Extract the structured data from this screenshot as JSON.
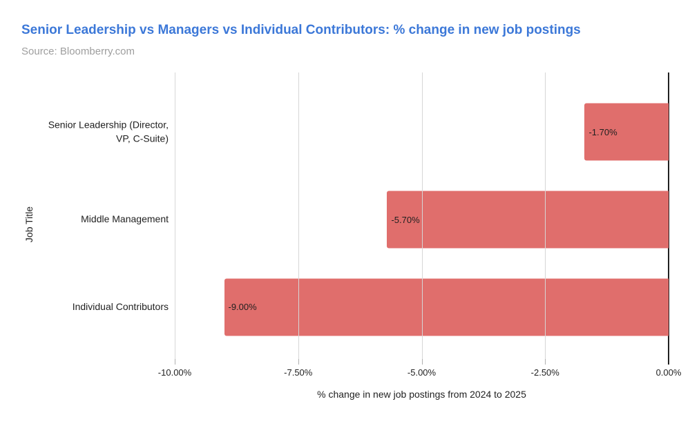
{
  "header": {
    "title": "Senior Leadership vs Managers vs Individual Contributors: % change in new job postings",
    "source": "Source: Bloomberry.com"
  },
  "chart_data": {
    "type": "bar",
    "orientation": "horizontal",
    "title": "Senior Leadership vs Managers vs Individual Contributors: % change in new job postings",
    "subtitle": "Source: Bloomberry.com",
    "categories": [
      "Senior Leadership (Director, VP, C-Suite)",
      "Middle Management",
      "Individual Contributors"
    ],
    "values": [
      -1.7,
      -5.7,
      -9.0
    ],
    "value_labels": [
      "-1.70%",
      "-5.70%",
      "-9.00%"
    ],
    "xlabel": "% change in new job postings from 2024 to 2025",
    "ylabel": "Job Title",
    "xlim": [
      -10,
      0
    ],
    "x_ticks": [
      {
        "value": -10,
        "label": "-10.00%"
      },
      {
        "value": -7.5,
        "label": "-7.50%"
      },
      {
        "value": -5,
        "label": "-5.00%"
      },
      {
        "value": -2.5,
        "label": "-2.50%"
      },
      {
        "value": 0,
        "label": "0.00%"
      }
    ],
    "grid": true,
    "legend": "none"
  },
  "colors": {
    "title": "#3c78d8",
    "source": "#9e9e9e",
    "bar": "#e06e6c",
    "gridline": "#d6d6d6",
    "tick": "#b0b0b0",
    "axis_zero_line": "#212121",
    "text": "#1f1f1f"
  }
}
